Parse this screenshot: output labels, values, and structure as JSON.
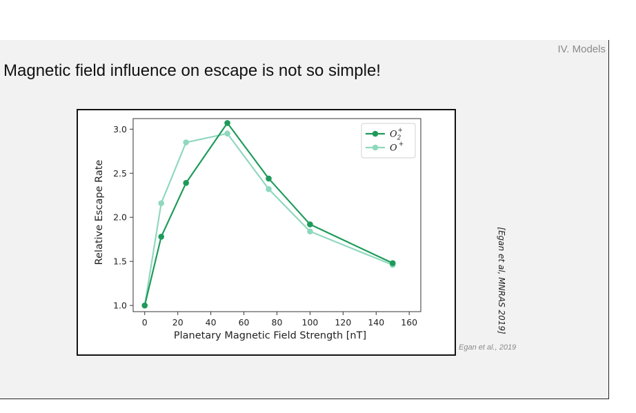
{
  "slide": {
    "section_label": "IV. Models",
    "title": "Magnetic field influence on escape is not so simple!",
    "side_citation": "[Egan et al, MNRAS 2019]",
    "caption": "Egan et al., 2019"
  },
  "colors": {
    "background": "#f2f2f2",
    "o2_plus": "#1e9a5a",
    "o_plus": "#8fd8bd"
  },
  "chart_data": {
    "type": "line",
    "title": "",
    "xlabel": "Planetary Magnetic Field Strength [nT]",
    "ylabel": "Relative Escape Rate",
    "xlim": [
      -7,
      167
    ],
    "ylim": [
      0.93,
      3.12
    ],
    "xticks": [
      0,
      20,
      40,
      60,
      80,
      100,
      120,
      140,
      160
    ],
    "yticks": [
      1.0,
      1.5,
      2.0,
      2.5,
      3.0
    ],
    "xtick_labels": [
      "0",
      "20",
      "40",
      "60",
      "80",
      "100",
      "120",
      "140",
      "160"
    ],
    "ytick_labels": [
      "1.0",
      "1.5",
      "2.0",
      "2.5",
      "3.0"
    ],
    "grid": false,
    "legend_position": "top-right",
    "series": [
      {
        "name": "O2+",
        "label_base": "O",
        "label_sub": "2",
        "label_sup": "+",
        "color": "#1e9a5a",
        "points": [
          [
            0,
            1.0
          ],
          [
            10,
            1.78
          ],
          [
            25,
            2.39
          ],
          [
            50,
            3.07
          ],
          [
            75,
            2.44
          ],
          [
            100,
            1.92
          ],
          [
            150,
            1.48
          ]
        ]
      },
      {
        "name": "O+",
        "label_base": "O",
        "label_sub": "",
        "label_sup": "+",
        "color": "#8fd8bd",
        "points": [
          [
            0,
            1.0
          ],
          [
            10,
            2.16
          ],
          [
            25,
            2.85
          ],
          [
            50,
            2.95
          ],
          [
            75,
            2.32
          ],
          [
            100,
            1.84
          ],
          [
            150,
            1.46
          ]
        ]
      }
    ]
  }
}
